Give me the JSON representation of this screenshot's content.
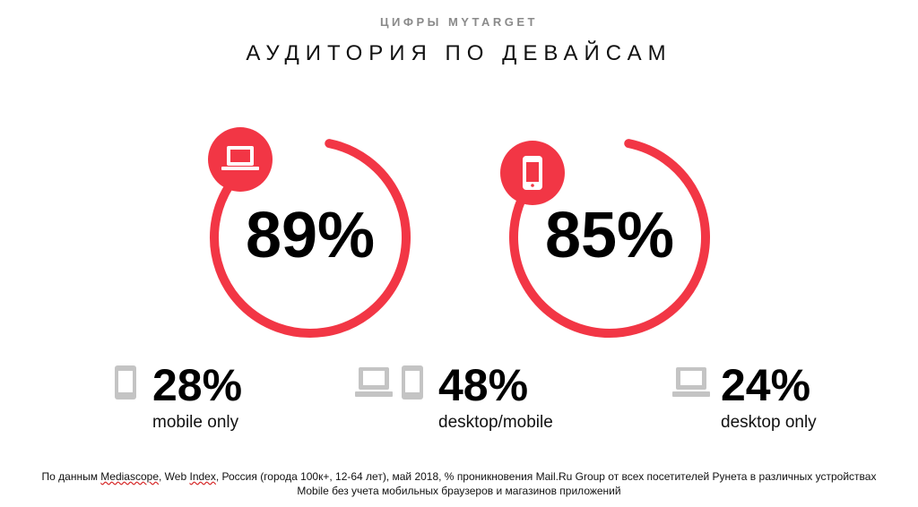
{
  "header": {
    "kicker": "ЦИФРЫ MYTARGET",
    "title": "АУДИТОРИЯ ПО ДЕВАЙСАМ"
  },
  "colors": {
    "accent": "#f23645",
    "icon_gray": "#c4c4c4"
  },
  "chart_data": [
    {
      "type": "pie",
      "title": "",
      "icon": "laptop-icon",
      "values": [
        89
      ],
      "label": "89%"
    },
    {
      "type": "pie",
      "title": "",
      "icon": "mobile-phone-icon",
      "values": [
        85
      ],
      "label": "85%"
    }
  ],
  "breakdown": [
    {
      "value": "28%",
      "label": "mobile only",
      "icons": [
        "mobile-phone-icon"
      ]
    },
    {
      "value": "48%",
      "label": "desktop/mobile",
      "icons": [
        "laptop-icon",
        "mobile-phone-icon"
      ]
    },
    {
      "value": "24%",
      "label": "desktop only",
      "icons": [
        "laptop-icon"
      ]
    }
  ],
  "footnote": {
    "line1_pre": "По данным ",
    "line1_src1": "Mediascope",
    "line1_mid": ", Web ",
    "line1_src2": "Index",
    "line1_post": ", Россия (города 100к+, 12-64 лет), май 2018, % проникновения Mail.Ru Group от всех посетителей Рунета в различных устройствах",
    "line2": "Mobile  без учета мобильных браузеров и магазинов приложений"
  }
}
